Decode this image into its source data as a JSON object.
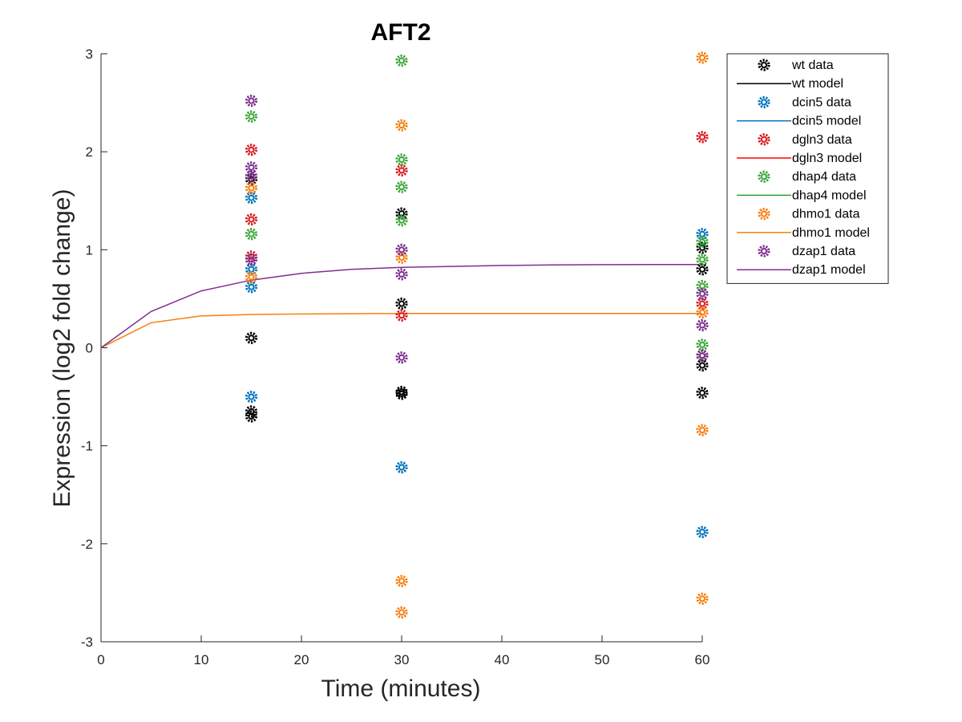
{
  "chart_data": {
    "type": "scatter",
    "title": "AFT2",
    "xlabel": "Time (minutes)",
    "ylabel": "Expression (log2 fold change)",
    "xlim": [
      0,
      60
    ],
    "ylim": [
      -3,
      3
    ],
    "xticks": [
      0,
      10,
      20,
      30,
      40,
      50,
      60
    ],
    "yticks": [
      -3,
      -2,
      -1,
      0,
      1,
      2,
      3
    ],
    "grid": false,
    "legend_position": "outside-top-right",
    "series": [
      {
        "name": "wt data",
        "kind": "data",
        "color": "#000000",
        "points": [
          [
            15,
            0.1
          ],
          [
            15,
            -0.65
          ],
          [
            15,
            -0.7
          ],
          [
            15,
            1.72
          ],
          [
            30,
            1.37
          ],
          [
            30,
            0.45
          ],
          [
            30,
            -0.45
          ],
          [
            30,
            -0.47
          ],
          [
            60,
            1.02
          ],
          [
            60,
            0.8
          ],
          [
            60,
            -0.08
          ],
          [
            60,
            -0.18
          ],
          [
            60,
            -0.46
          ]
        ]
      },
      {
        "name": "wt model",
        "kind": "model",
        "color": "#000000",
        "x": [],
        "y": []
      },
      {
        "name": "dcin5 data",
        "kind": "data",
        "color": "#0072BD",
        "points": [
          [
            15,
            1.53
          ],
          [
            15,
            0.8
          ],
          [
            15,
            0.62
          ],
          [
            15,
            -0.5
          ],
          [
            30,
            -1.22
          ],
          [
            60,
            1.16
          ],
          [
            60,
            -1.88
          ]
        ]
      },
      {
        "name": "dcin5 model",
        "kind": "model",
        "color": "#0072BD",
        "x": [],
        "y": []
      },
      {
        "name": "dgln3 data",
        "kind": "data",
        "color": "#D9181D",
        "points": [
          [
            15,
            2.02
          ],
          [
            15,
            1.31
          ],
          [
            15,
            0.93
          ],
          [
            30,
            1.81
          ],
          [
            30,
            0.33
          ],
          [
            60,
            2.15
          ],
          [
            60,
            0.45
          ]
        ]
      },
      {
        "name": "dgln3 model",
        "kind": "model",
        "color": "#FF0000",
        "x": [],
        "y": []
      },
      {
        "name": "dhap4 data",
        "kind": "data",
        "color": "#3AA637",
        "points": [
          [
            15,
            2.36
          ],
          [
            15,
            1.16
          ],
          [
            30,
            2.93
          ],
          [
            30,
            1.92
          ],
          [
            30,
            1.64
          ],
          [
            30,
            1.3
          ],
          [
            60,
            1.08
          ],
          [
            60,
            0.9
          ],
          [
            60,
            0.63
          ],
          [
            60,
            0.03
          ]
        ]
      },
      {
        "name": "dhap4 model",
        "kind": "model",
        "color": "#2CA02C",
        "x": [],
        "y": []
      },
      {
        "name": "dhmo1 data",
        "kind": "data",
        "color": "#F77F0E",
        "points": [
          [
            15,
            1.63
          ],
          [
            15,
            0.72
          ],
          [
            30,
            2.27
          ],
          [
            30,
            0.92
          ],
          [
            30,
            -2.38
          ],
          [
            30,
            -2.7
          ],
          [
            60,
            2.96
          ],
          [
            60,
            0.36
          ],
          [
            60,
            -0.84
          ],
          [
            60,
            -2.56
          ]
        ]
      },
      {
        "name": "dhmo1 model",
        "kind": "model",
        "color": "#F77F0E",
        "x": [
          0,
          5,
          10,
          15,
          20,
          25,
          30,
          35,
          40,
          45,
          50,
          55,
          60
        ],
        "y": [
          0,
          0.255,
          0.325,
          0.34,
          0.345,
          0.348,
          0.35,
          0.35,
          0.35,
          0.35,
          0.35,
          0.35,
          0.35
        ]
      },
      {
        "name": "dzap1 data",
        "kind": "data",
        "color": "#7E2F8E",
        "points": [
          [
            15,
            2.52
          ],
          [
            15,
            1.84
          ],
          [
            15,
            1.75
          ],
          [
            15,
            0.9
          ],
          [
            30,
            1.0
          ],
          [
            30,
            0.75
          ],
          [
            30,
            -0.1
          ],
          [
            60,
            0.55
          ],
          [
            60,
            0.23
          ],
          [
            60,
            -0.08
          ]
        ]
      },
      {
        "name": "dzap1 model",
        "kind": "model",
        "color": "#7E2F8E",
        "x": [
          0,
          5,
          10,
          15,
          20,
          25,
          30,
          35,
          40,
          45,
          50,
          55,
          60
        ],
        "y": [
          0,
          0.37,
          0.58,
          0.69,
          0.76,
          0.8,
          0.82,
          0.83,
          0.84,
          0.845,
          0.848,
          0.85,
          0.85
        ]
      }
    ]
  }
}
